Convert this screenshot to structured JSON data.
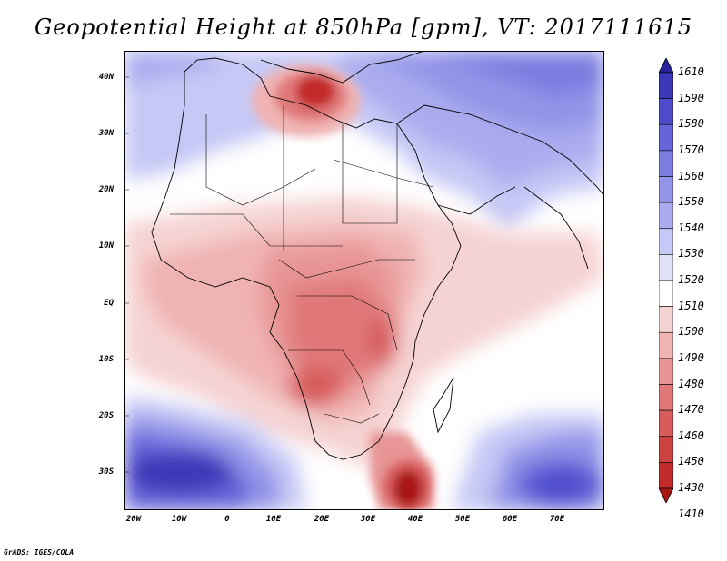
{
  "title": "Geopotential Height at 850hPa [gpm], VT: 2017111615",
  "credit": "GrADS: IGES/COLA",
  "y_ticks": [
    "40N",
    "30N",
    "20N",
    "10N",
    "EQ",
    "10S",
    "20S",
    "30S"
  ],
  "x_ticks": [
    "20W",
    "10W",
    "0",
    "10E",
    "20E",
    "30E",
    "40E",
    "50E",
    "60E",
    "70E"
  ],
  "colorbar": {
    "levels": [
      "1610",
      "1590",
      "1580",
      "1570",
      "1560",
      "1550",
      "1540",
      "1530",
      "1520",
      "1510",
      "1500",
      "1490",
      "1480",
      "1470",
      "1460",
      "1450",
      "1430",
      "1410"
    ],
    "colors": [
      "#27219a",
      "#3b37b8",
      "#4f4ccc",
      "#6564d8",
      "#7b7be0",
      "#9394e8",
      "#aaacef",
      "#c6c8f5",
      "#e1e2fa",
      "#ffffff",
      "#f6d3d3",
      "#f0b3b3",
      "#e89595",
      "#e07878",
      "#d85c5c",
      "#cf4242",
      "#c22b2b",
      "#a81515"
    ]
  }
}
